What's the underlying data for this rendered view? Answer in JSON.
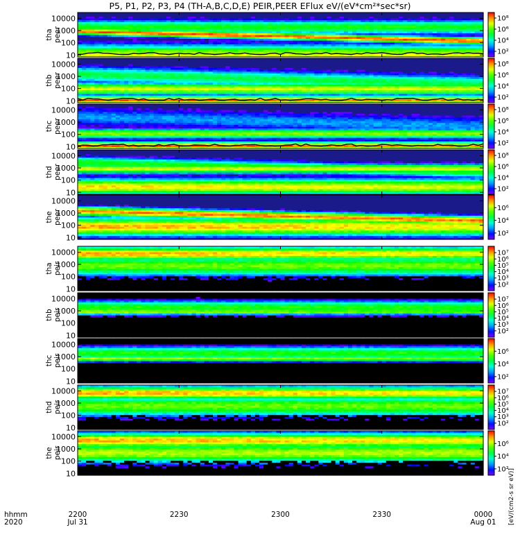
{
  "chart_data": {
    "type": "heatmap",
    "title": "P5, P1, P2, P3, P4 (TH-A,B,C,D,E) PEIR,PEER EFlux eV/(eV*cm²*sec*sr)",
    "colorbar_title": "[eV/(cm2-s sr eV)]",
    "x_axis": {
      "label_line1": "hhmm",
      "label_line2": "2020",
      "ticks": [
        {
          "time": "2200",
          "date": "Jul 31",
          "minutes": 0
        },
        {
          "time": "2230",
          "date": "",
          "minutes": 30
        },
        {
          "time": "2300",
          "date": "",
          "minutes": 60
        },
        {
          "time": "2330",
          "date": "",
          "minutes": 90
        },
        {
          "time": "0000",
          "date": "Aug 01",
          "minutes": 120
        }
      ],
      "range_minutes": [
        0,
        120
      ]
    },
    "y_axis": {
      "scale": "log",
      "range_eV": [
        7,
        30000
      ],
      "ticks": [
        "10",
        "100",
        "1000",
        "10000"
      ],
      "tick_values": [
        10,
        100,
        1000,
        10000
      ]
    },
    "panels": [
      {
        "id": "tha-peer",
        "probe": "tha",
        "species": "peer",
        "ylabel1": "tha",
        "ylabel2": "peer",
        "colorbar_ticks": [
          "10⁸",
          "10⁶",
          "10⁴",
          "10²"
        ],
        "colorbar_exps": [
          8,
          6,
          4,
          2
        ],
        "colorbar_range": [
          1,
          9
        ],
        "bands": [
          [
            10,
            7,
            0.9,
            5
          ],
          [
            900,
            8.5,
            0.3,
            3
          ],
          [
            2000,
            5.5,
            0.6,
            2
          ]
        ],
        "overlay_line": true
      },
      {
        "id": "thb-peer",
        "probe": "thb",
        "species": "peer",
        "ylabel1": "thb",
        "ylabel2": "peer",
        "colorbar_ticks": [
          "10⁸",
          "10⁶",
          "10⁴",
          "10²"
        ],
        "colorbar_exps": [
          8,
          6,
          4,
          2
        ],
        "colorbar_range": [
          1,
          9
        ],
        "bands": [
          [
            12,
            8.5,
            0.35,
            1
          ],
          [
            100,
            7,
            0.5,
            2
          ],
          [
            1500,
            5,
            0.7,
            3
          ]
        ],
        "overlay_line": true
      },
      {
        "id": "thc-peer",
        "probe": "thc",
        "species": "peer",
        "ylabel1": "thc",
        "ylabel2": "peer",
        "colorbar_ticks": [
          "10⁸",
          "10⁶",
          "10⁴",
          "10²"
        ],
        "colorbar_exps": [
          8,
          6,
          4,
          2
        ],
        "colorbar_range": [
          1,
          9
        ],
        "bands": [
          [
            12,
            8.5,
            0.35,
            1
          ],
          [
            120,
            6.5,
            0.4,
            2
          ],
          [
            3000,
            3,
            0.8,
            3
          ]
        ],
        "overlay_line": true
      },
      {
        "id": "thd-peer",
        "probe": "thd",
        "species": "peer",
        "ylabel1": "thd",
        "ylabel2": "peer",
        "colorbar_ticks": [
          "10⁸",
          "10⁶",
          "10⁴",
          "10²"
        ],
        "colorbar_exps": [
          8,
          6,
          4,
          2
        ],
        "colorbar_range": [
          1,
          9
        ],
        "bands": [
          [
            30,
            7.5,
            0.7,
            1
          ],
          [
            900,
            7,
            0.4,
            2
          ],
          [
            3000,
            5.5,
            0.5,
            3
          ]
        ],
        "overlay_line": false
      },
      {
        "id": "the-peer",
        "probe": "the",
        "species": "peer",
        "ylabel1": "the",
        "ylabel2": "peer",
        "colorbar_ticks": [
          "10⁶",
          "10⁴",
          "10²"
        ],
        "colorbar_exps": [
          6,
          4,
          2
        ],
        "colorbar_range": [
          1,
          8
        ],
        "bands": [
          [
            1500,
            7.3,
            0.4,
            3
          ],
          [
            80,
            7,
            0.8,
            1
          ]
        ],
        "overlay_line": false
      },
      {
        "id": "tha-peir",
        "probe": "tha",
        "species": "peir",
        "ylabel1": "tha",
        "ylabel2": "peir",
        "colorbar_ticks": [
          "10⁷",
          "10⁶",
          "10⁵",
          "10⁴",
          "10³",
          "10²"
        ],
        "colorbar_exps": [
          7,
          6,
          5,
          4,
          3,
          2
        ],
        "colorbar_range": [
          1,
          8
        ],
        "bands": [
          [
            8000,
            7,
            0.6,
            1
          ],
          [
            800,
            5.5,
            0.9,
            2
          ]
        ],
        "overlay_line": false
      },
      {
        "id": "thb-peir",
        "probe": "thb",
        "species": "peir",
        "ylabel1": "thb",
        "ylabel2": "peir",
        "colorbar_ticks": [
          "10⁷",
          "10⁶",
          "10⁵",
          "10⁴",
          "10³",
          "10²"
        ],
        "colorbar_exps": [
          7,
          6,
          5,
          4,
          3,
          2
        ],
        "colorbar_range": [
          1,
          8
        ],
        "bands": [
          [
            900,
            6.2,
            0.25,
            1
          ],
          [
            2000,
            5,
            0.6,
            2
          ]
        ],
        "overlay_line": false
      },
      {
        "id": "thc-peir",
        "probe": "thc",
        "species": "peir",
        "ylabel1": "thc",
        "ylabel2": "peir",
        "colorbar_ticks": [
          "10⁶",
          "10⁴",
          "10²"
        ],
        "colorbar_exps": [
          6,
          4,
          2
        ],
        "colorbar_range": [
          1,
          8
        ],
        "bands": [
          [
            700,
            6.2,
            0.25,
            1
          ],
          [
            2000,
            5,
            0.6,
            2
          ]
        ],
        "overlay_line": false
      },
      {
        "id": "thd-peir",
        "probe": "thd",
        "species": "peir",
        "ylabel1": "thd",
        "ylabel2": "peir",
        "colorbar_ticks": [
          "10⁷",
          "10⁶",
          "10⁵",
          "10⁴",
          "10³",
          "10²"
        ],
        "colorbar_exps": [
          7,
          6,
          5,
          4,
          3,
          2
        ],
        "colorbar_range": [
          1,
          8
        ],
        "bands": [
          [
            7000,
            7,
            0.6,
            1
          ],
          [
            600,
            5.5,
            0.9,
            2
          ]
        ],
        "overlay_line": false
      },
      {
        "id": "the-peir",
        "probe": "the",
        "species": "peir",
        "ylabel1": "the",
        "ylabel2": "peir",
        "colorbar_ticks": [
          "10⁶",
          "10⁴",
          "10²"
        ],
        "colorbar_exps": [
          6,
          4,
          2
        ],
        "colorbar_range": [
          1,
          8
        ],
        "bands": [
          [
            5000,
            7,
            0.7,
            1
          ],
          [
            500,
            6,
            0.9,
            2
          ]
        ],
        "overlay_line": false
      }
    ]
  }
}
